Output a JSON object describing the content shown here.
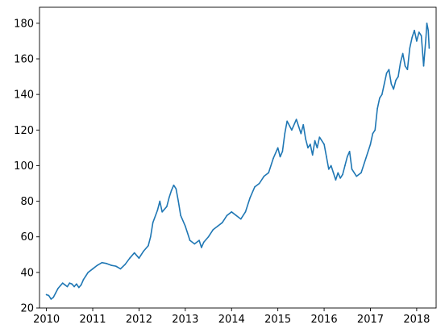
{
  "chart_data": {
    "type": "line",
    "title": "",
    "xlabel": "",
    "ylabel": "",
    "x_axis": "year",
    "xlim": [
      2009.85,
      2018.42
    ],
    "ylim": [
      20.0,
      189.0
    ],
    "x_ticks": [
      2010,
      2011,
      2012,
      2013,
      2014,
      2015,
      2016,
      2017,
      2018
    ],
    "x_tick_labels": [
      "2010",
      "2011",
      "2012",
      "2013",
      "2014",
      "2015",
      "2016",
      "2017",
      "2018"
    ],
    "y_ticks": [
      20,
      40,
      60,
      80,
      100,
      120,
      140,
      160,
      180
    ],
    "y_tick_labels": [
      "20",
      "40",
      "60",
      "80",
      "100",
      "120",
      "140",
      "160",
      "180"
    ],
    "grid": false,
    "legend": "none",
    "series": [
      {
        "color": "#1f77b4",
        "x": [
          2010.0,
          2010.05,
          2010.1,
          2010.15,
          2010.2,
          2010.25,
          2010.3,
          2010.35,
          2010.4,
          2010.45,
          2010.5,
          2010.55,
          2010.6,
          2010.65,
          2010.7,
          2010.75,
          2010.8,
          2010.85,
          2010.9,
          2011.0,
          2011.1,
          2011.2,
          2011.3,
          2011.4,
          2011.5,
          2011.6,
          2011.7,
          2011.8,
          2011.9,
          2012.0,
          2012.1,
          2012.2,
          2012.25,
          2012.3,
          2012.4,
          2012.45,
          2012.5,
          2012.6,
          2012.65,
          2012.7,
          2012.75,
          2012.8,
          2012.85,
          2012.9,
          2013.0,
          2013.05,
          2013.1,
          2013.2,
          2013.3,
          2013.35,
          2013.4,
          2013.5,
          2013.6,
          2013.7,
          2013.8,
          2013.9,
          2014.0,
          2014.1,
          2014.2,
          2014.3,
          2014.4,
          2014.5,
          2014.6,
          2014.7,
          2014.8,
          2014.9,
          2015.0,
          2015.05,
          2015.1,
          2015.15,
          2015.2,
          2015.3,
          2015.4,
          2015.45,
          2015.5,
          2015.55,
          2015.6,
          2015.65,
          2015.7,
          2015.75,
          2015.8,
          2015.85,
          2015.9,
          2016.0,
          2016.05,
          2016.1,
          2016.15,
          2016.2,
          2016.25,
          2016.3,
          2016.35,
          2016.4,
          2016.45,
          2016.5,
          2016.55,
          2016.6,
          2016.7,
          2016.8,
          2016.9,
          2017.0,
          2017.05,
          2017.1,
          2017.15,
          2017.2,
          2017.25,
          2017.3,
          2017.35,
          2017.4,
          2017.45,
          2017.5,
          2017.55,
          2017.6,
          2017.65,
          2017.7,
          2017.75,
          2017.8,
          2017.85,
          2017.9,
          2017.95,
          2018.0,
          2018.05,
          2018.1,
          2018.15,
          2018.2,
          2018.22,
          2018.25,
          2018.27
        ],
        "values": [
          27.5,
          27.0,
          25.0,
          26.0,
          28.5,
          31.0,
          32.5,
          34.0,
          33.0,
          32.0,
          34.0,
          33.5,
          32.0,
          33.5,
          31.5,
          33.0,
          36.0,
          38.0,
          40.0,
          42.0,
          44.0,
          45.5,
          45.0,
          44.0,
          43.5,
          42.0,
          44.5,
          48.0,
          51.0,
          48.0,
          52.0,
          55.0,
          60.0,
          68.0,
          75.0,
          80.0,
          74.0,
          77.0,
          82.0,
          86.0,
          89.0,
          87.0,
          80.0,
          72.0,
          66.0,
          62.0,
          58.0,
          56.0,
          58.0,
          54.0,
          57.0,
          60.0,
          64.0,
          66.0,
          68.0,
          72.0,
          74.0,
          72.0,
          70.0,
          74.0,
          82.0,
          88.0,
          90.0,
          94.0,
          96.0,
          104.0,
          110.0,
          105.0,
          108.0,
          118.0,
          125.0,
          120.0,
          126.0,
          122.0,
          118.0,
          123.0,
          115.0,
          110.0,
          112.0,
          106.0,
          114.0,
          110.0,
          116.0,
          112.0,
          105.0,
          98.0,
          100.0,
          96.0,
          92.0,
          96.0,
          93.0,
          95.0,
          100.0,
          105.0,
          108.0,
          98.0,
          94.0,
          96.0,
          104.0,
          112.0,
          118.0,
          120.0,
          132.0,
          138.0,
          140.0,
          146.0,
          152.0,
          154.0,
          146.0,
          143.0,
          148.0,
          150.0,
          158.0,
          163.0,
          156.0,
          154.0,
          166.0,
          172.0,
          176.0,
          170.0,
          175.0,
          173.0,
          156.0,
          172.0,
          180.0,
          176.0,
          166.0
        ]
      }
    ]
  }
}
